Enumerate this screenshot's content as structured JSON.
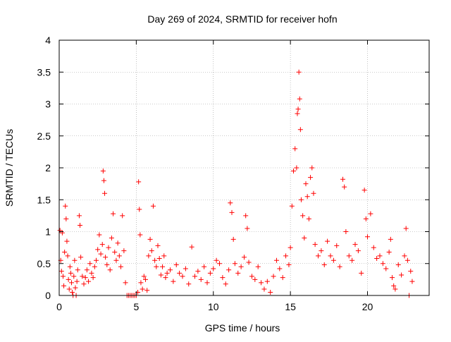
{
  "chart_data": {
    "type": "scatter",
    "title": "Day 269 of 2024, SRMTID for receiver hofn",
    "xlabel": "GPS time / hours",
    "ylabel": "SRMTID / TECUs",
    "xlim": [
      0,
      24
    ],
    "ylim": [
      0,
      4
    ],
    "xticks": [
      0,
      5,
      10,
      15,
      20
    ],
    "xtick_labels": [
      "0",
      "5",
      "10",
      "15",
      "20"
    ],
    "yticks": [
      0,
      0.5,
      1,
      1.5,
      2,
      2.5,
      3,
      3.5,
      4
    ],
    "ytick_labels": [
      "0",
      "0.5",
      "1",
      "1.5",
      "2",
      "2.5",
      "3",
      "3.5",
      "4"
    ],
    "grid": true,
    "marker": "+",
    "series": [
      {
        "name": "SRMTID",
        "color": "#ff0000",
        "points": [
          [
            0.05,
            1.02
          ],
          [
            0.1,
            0.55
          ],
          [
            0.15,
            0.38
          ],
          [
            0.2,
            0.98
          ],
          [
            0.25,
            0.3
          ],
          [
            0.3,
            0.15
          ],
          [
            0.35,
            0.68
          ],
          [
            0.4,
            1.4
          ],
          [
            0.45,
            1.2
          ],
          [
            0.5,
            0.85
          ],
          [
            0.55,
            0.62
          ],
          [
            0.6,
            0.25
          ],
          [
            0.65,
            0.1
          ],
          [
            0.7,
            0.45
          ],
          [
            0.75,
            0.35
          ],
          [
            0.8,
            0.2
          ],
          [
            0.85,
            0.05
          ],
          [
            0.9,
            0.0
          ],
          [
            0.95,
            0.3
          ],
          [
            1.0,
            0.55
          ],
          [
            1.05,
            0.12
          ],
          [
            1.1,
            0.0
          ],
          [
            1.15,
            0.22
          ],
          [
            1.2,
            0.4
          ],
          [
            1.3,
            1.25
          ],
          [
            1.35,
            1.1
          ],
          [
            1.4,
            0.6
          ],
          [
            1.5,
            0.3
          ],
          [
            1.6,
            0.18
          ],
          [
            1.7,
            0.28
          ],
          [
            1.8,
            0.4
          ],
          [
            1.9,
            0.22
          ],
          [
            2.0,
            0.5
          ],
          [
            2.1,
            0.35
          ],
          [
            2.2,
            0.28
          ],
          [
            2.3,
            0.45
          ],
          [
            2.4,
            0.55
          ],
          [
            2.5,
            0.72
          ],
          [
            2.6,
            0.95
          ],
          [
            2.7,
            0.65
          ],
          [
            2.8,
            0.8
          ],
          [
            2.85,
            1.95
          ],
          [
            2.9,
            1.8
          ],
          [
            2.95,
            1.6
          ],
          [
            3.0,
            0.6
          ],
          [
            3.1,
            0.48
          ],
          [
            3.2,
            0.75
          ],
          [
            3.3,
            0.4
          ],
          [
            3.4,
            0.9
          ],
          [
            3.5,
            1.28
          ],
          [
            3.6,
            0.68
          ],
          [
            3.7,
            0.55
          ],
          [
            3.8,
            0.82
          ],
          [
            3.9,
            0.62
          ],
          [
            4.0,
            0.45
          ],
          [
            4.1,
            1.25
          ],
          [
            4.2,
            0.7
          ],
          [
            4.3,
            0.2
          ],
          [
            4.4,
            0.0
          ],
          [
            4.5,
            0.0
          ],
          [
            4.6,
            0.0
          ],
          [
            4.7,
            0.0
          ],
          [
            4.8,
            0.0
          ],
          [
            4.9,
            0.0
          ],
          [
            5.0,
            0.0
          ],
          [
            5.1,
            0.05
          ],
          [
            5.15,
            1.78
          ],
          [
            5.2,
            1.35
          ],
          [
            5.25,
            0.95
          ],
          [
            5.3,
            0.2
          ],
          [
            5.4,
            0.1
          ],
          [
            5.5,
            0.3
          ],
          [
            5.6,
            0.25
          ],
          [
            5.7,
            0.08
          ],
          [
            5.8,
            0.62
          ],
          [
            5.9,
            0.88
          ],
          [
            6.0,
            0.7
          ],
          [
            6.1,
            1.4
          ],
          [
            6.2,
            0.55
          ],
          [
            6.3,
            0.45
          ],
          [
            6.4,
            0.78
          ],
          [
            6.5,
            0.58
          ],
          [
            6.6,
            0.32
          ],
          [
            6.7,
            0.45
          ],
          [
            6.8,
            0.62
          ],
          [
            6.9,
            0.28
          ],
          [
            7.0,
            0.35
          ],
          [
            7.2,
            0.4
          ],
          [
            7.4,
            0.22
          ],
          [
            7.6,
            0.48
          ],
          [
            7.8,
            0.35
          ],
          [
            8.0,
            0.3
          ],
          [
            8.2,
            0.42
          ],
          [
            8.4,
            0.18
          ],
          [
            8.6,
            0.76
          ],
          [
            8.8,
            0.3
          ],
          [
            9.0,
            0.38
          ],
          [
            9.2,
            0.25
          ],
          [
            9.4,
            0.45
          ],
          [
            9.6,
            0.2
          ],
          [
            9.8,
            0.35
          ],
          [
            10.0,
            0.42
          ],
          [
            10.2,
            0.55
          ],
          [
            10.4,
            0.5
          ],
          [
            10.6,
            0.28
          ],
          [
            10.8,
            0.18
          ],
          [
            11.0,
            0.4
          ],
          [
            11.1,
            1.45
          ],
          [
            11.2,
            1.3
          ],
          [
            11.3,
            0.88
          ],
          [
            11.4,
            0.5
          ],
          [
            11.6,
            0.35
          ],
          [
            11.8,
            0.45
          ],
          [
            12.0,
            0.6
          ],
          [
            12.1,
            1.25
          ],
          [
            12.2,
            1.05
          ],
          [
            12.3,
            0.52
          ],
          [
            12.5,
            0.3
          ],
          [
            12.7,
            0.25
          ],
          [
            12.9,
            0.45
          ],
          [
            13.1,
            0.2
          ],
          [
            13.3,
            0.1
          ],
          [
            13.5,
            0.22
          ],
          [
            13.7,
            0.05
          ],
          [
            13.9,
            0.3
          ],
          [
            14.1,
            0.55
          ],
          [
            14.3,
            0.42
          ],
          [
            14.5,
            0.28
          ],
          [
            14.7,
            0.62
          ],
          [
            14.9,
            0.48
          ],
          [
            15.0,
            0.75
          ],
          [
            15.1,
            1.4
          ],
          [
            15.2,
            1.95
          ],
          [
            15.3,
            2.3
          ],
          [
            15.4,
            2.0
          ],
          [
            15.45,
            2.85
          ],
          [
            15.5,
            2.92
          ],
          [
            15.55,
            3.5
          ],
          [
            15.6,
            3.08
          ],
          [
            15.65,
            2.6
          ],
          [
            15.7,
            1.5
          ],
          [
            15.8,
            1.25
          ],
          [
            15.9,
            0.9
          ],
          [
            16.0,
            1.75
          ],
          [
            16.1,
            1.55
          ],
          [
            16.2,
            1.2
          ],
          [
            16.3,
            1.85
          ],
          [
            16.4,
            2.0
          ],
          [
            16.5,
            1.6
          ],
          [
            16.6,
            0.8
          ],
          [
            16.8,
            0.62
          ],
          [
            17.0,
            0.7
          ],
          [
            17.2,
            0.48
          ],
          [
            17.4,
            0.85
          ],
          [
            17.6,
            0.62
          ],
          [
            17.8,
            0.55
          ],
          [
            18.0,
            0.78
          ],
          [
            18.2,
            0.45
          ],
          [
            18.4,
            1.82
          ],
          [
            18.5,
            1.7
          ],
          [
            18.6,
            1.0
          ],
          [
            18.8,
            0.62
          ],
          [
            19.0,
            0.55
          ],
          [
            19.2,
            0.8
          ],
          [
            19.4,
            0.7
          ],
          [
            19.6,
            0.35
          ],
          [
            19.8,
            1.65
          ],
          [
            19.9,
            1.2
          ],
          [
            20.0,
            0.92
          ],
          [
            20.2,
            1.28
          ],
          [
            20.4,
            0.75
          ],
          [
            20.6,
            0.58
          ],
          [
            20.8,
            0.62
          ],
          [
            21.0,
            0.5
          ],
          [
            21.2,
            0.42
          ],
          [
            21.4,
            0.68
          ],
          [
            21.5,
            0.88
          ],
          [
            21.6,
            0.28
          ],
          [
            21.7,
            0.15
          ],
          [
            21.8,
            0.1
          ],
          [
            22.0,
            0.48
          ],
          [
            22.2,
            0.32
          ],
          [
            22.4,
            0.62
          ],
          [
            22.5,
            1.05
          ],
          [
            22.6,
            0.55
          ],
          [
            22.7,
            0.0
          ],
          [
            22.8,
            0.38
          ],
          [
            22.9,
            0.22
          ]
        ]
      }
    ]
  }
}
